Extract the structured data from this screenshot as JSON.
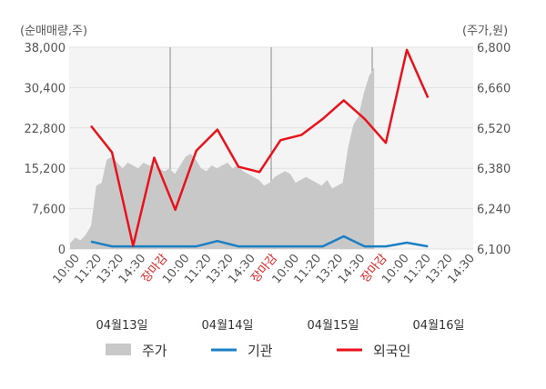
{
  "chart_data": {
    "type": "line",
    "left_axis": {
      "title": "(순매매량,주)",
      "ticks": [
        "38,000",
        "30,400",
        "22,800",
        "15,200",
        "7,600",
        "0"
      ],
      "ylim": [
        0,
        38000
      ]
    },
    "right_axis": {
      "title": "(주가,원)",
      "ticks": [
        "6,800",
        "6,660",
        "6,520",
        "6,380",
        "6,240",
        "6,100"
      ],
      "ylim": [
        6100,
        6800
      ]
    },
    "x_ticks": [
      "10:00",
      "11:20",
      "13:20",
      "14:30",
      "장마감",
      "10:00",
      "11:20",
      "13:20",
      "14:30",
      "장마감",
      "10:00",
      "11:20",
      "13:20",
      "14:30",
      "장마감",
      "10:00",
      "11:20",
      "13:20",
      "14:30"
    ],
    "closed_label": "장마감",
    "days": [
      "04월13일",
      "04월14일",
      "04월15일",
      "04월16일"
    ],
    "legend": [
      {
        "label": "주가",
        "color": "#c8c8c8",
        "kind": "area"
      },
      {
        "label": "기관",
        "color": "#1b7fc4",
        "kind": "line"
      },
      {
        "label": "외국인",
        "color": "#e8121a",
        "kind": "line"
      }
    ],
    "series": [
      {
        "name": "주가",
        "axis": "right",
        "values": [
          6120,
          6140,
          6130,
          6150,
          6180,
          6320,
          6330,
          6410,
          6420,
          6400,
          6380,
          6400,
          6390,
          6380,
          6400,
          6390,
          6390,
          6380,
          6370,
          6380,
          6360,
          6390,
          6420,
          6430,
          6410,
          6380,
          6370,
          6390,
          6380,
          6390,
          6400,
          6380,
          6390,
          6370,
          6360,
          6350,
          6340,
          6320,
          6330,
          6350,
          6360,
          6370,
          6360,
          6330,
          6340,
          6350,
          6340,
          6330,
          6320,
          6340,
          6310,
          6320,
          6330,
          6450,
          6530,
          6560,
          6640,
          6700,
          6730
        ]
      },
      {
        "name": "기관",
        "axis": "left",
        "values": [
          1400,
          500,
          500,
          500,
          500,
          500,
          1500,
          500,
          500,
          500,
          500,
          500,
          2400,
          500,
          500,
          1200,
          500
        ]
      },
      {
        "name": "외국인",
        "axis": "left",
        "values": [
          23200,
          18200,
          600,
          17200,
          7400,
          18500,
          22500,
          15500,
          14500,
          20500,
          21500,
          24500,
          28000,
          24500,
          20000,
          37500,
          28500
        ]
      }
    ],
    "grid": true,
    "legend_position": "bottom"
  }
}
